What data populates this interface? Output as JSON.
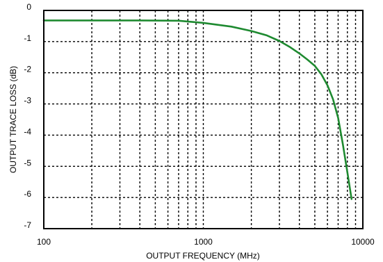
{
  "chart_data": {
    "type": "line",
    "xlabel": "OUTPUT FREQUENCY (MHz)",
    "ylabel": "OUTPUT TRACE LOSS (dB)",
    "x_scale": "log",
    "xlim": [
      100,
      10000
    ],
    "ylim": [
      -7,
      0
    ],
    "x_ticks": [
      100,
      1000,
      10000
    ],
    "x_tick_labels": [
      "100",
      "1000",
      "10000"
    ],
    "y_ticks": [
      0,
      -1,
      -2,
      -3,
      -4,
      -5,
      -6,
      -7
    ],
    "y_tick_labels": [
      "0",
      "-1",
      "-2",
      "-3",
      "-4",
      "-5",
      "-6",
      "-7"
    ],
    "grid": true,
    "grid_style": "dotted",
    "legend": false,
    "series": [
      {
        "color": "#1e8a30",
        "x": [
          100,
          200,
          400,
          700,
          1000,
          1500,
          2000,
          2500,
          3000,
          3500,
          4000,
          4500,
          5000,
          5500,
          6000,
          6500,
          7000,
          7500,
          8000,
          8500
        ],
        "y": [
          -0.32,
          -0.32,
          -0.32,
          -0.33,
          -0.4,
          -0.52,
          -0.66,
          -0.8,
          -0.98,
          -1.18,
          -1.38,
          -1.58,
          -1.78,
          -2.05,
          -2.4,
          -2.85,
          -3.45,
          -4.3,
          -5.2,
          -6.05
        ]
      }
    ]
  }
}
